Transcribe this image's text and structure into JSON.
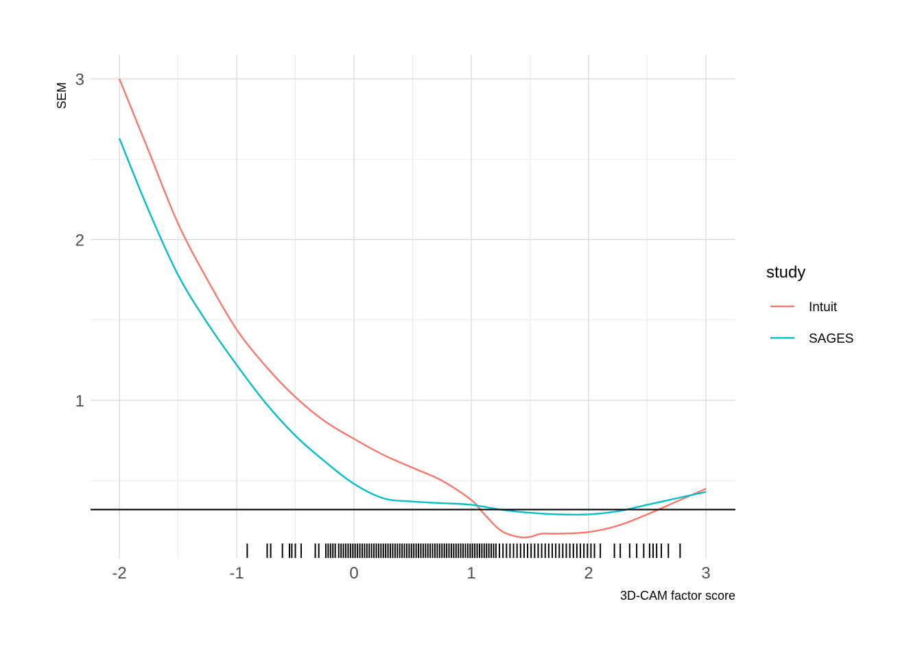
{
  "chart_data": {
    "type": "line",
    "xlabel": "3D-CAM factor score",
    "ylabel": "SEM",
    "xlim": [
      -2.25,
      3.25
    ],
    "ylim": [
      0.0,
      3.12
    ],
    "x_ticks": [
      -2,
      -1,
      0,
      1,
      2,
      3
    ],
    "x_tick_labels": [
      "-2",
      "-1",
      "0",
      "1",
      "2",
      "3"
    ],
    "y_ticks": [
      1,
      2,
      3
    ],
    "y_tick_labels": [
      "1",
      "2",
      "3"
    ],
    "y_minor_gridlines": [
      0.5,
      1.5,
      2.5
    ],
    "x_minor_gridlines": [
      -1.5,
      -0.5,
      0.5,
      1.5,
      2.5
    ],
    "grid": true,
    "legend": {
      "title": "study",
      "position": "right"
    },
    "reference_line": {
      "y": 0.32,
      "color": "#000000"
    },
    "series": [
      {
        "name": "Intuit",
        "color": "#F8766D",
        "x": [
          -2.0,
          -1.75,
          -1.5,
          -1.25,
          -1.0,
          -0.75,
          -0.5,
          -0.25,
          0.0,
          0.25,
          0.5,
          0.75,
          1.0,
          1.1,
          1.25,
          1.4,
          1.5,
          1.6,
          1.75,
          2.0,
          2.25,
          2.5,
          2.75,
          3.0
        ],
        "y": [
          3.0,
          2.55,
          2.1,
          1.75,
          1.44,
          1.21,
          1.02,
          0.87,
          0.76,
          0.66,
          0.58,
          0.5,
          0.38,
          0.3,
          0.19,
          0.15,
          0.15,
          0.17,
          0.17,
          0.18,
          0.22,
          0.29,
          0.37,
          0.45
        ]
      },
      {
        "name": "SAGES",
        "color": "#00BFC4",
        "x": [
          -2.0,
          -1.75,
          -1.5,
          -1.25,
          -1.0,
          -0.75,
          -0.5,
          -0.25,
          0.0,
          0.25,
          0.5,
          0.75,
          1.0,
          1.25,
          1.5,
          1.75,
          2.0,
          2.25,
          2.5,
          2.75,
          3.0
        ],
        "y": [
          2.63,
          2.18,
          1.78,
          1.48,
          1.22,
          0.98,
          0.78,
          0.62,
          0.48,
          0.39,
          0.37,
          0.36,
          0.35,
          0.32,
          0.3,
          0.29,
          0.29,
          0.31,
          0.35,
          0.39,
          0.43
        ]
      }
    ],
    "rug_x": [
      -0.91,
      -0.74,
      -0.71,
      -0.61,
      -0.55,
      -0.53,
      -0.5,
      -0.45,
      -0.33,
      -0.3,
      -0.24,
      -0.22,
      -0.2,
      -0.18,
      -0.16,
      -0.13,
      -0.11,
      -0.09,
      -0.07,
      -0.05,
      -0.03,
      -0.01,
      0.01,
      0.03,
      0.05,
      0.07,
      0.09,
      0.11,
      0.13,
      0.15,
      0.17,
      0.19,
      0.21,
      0.23,
      0.25,
      0.27,
      0.29,
      0.31,
      0.33,
      0.35,
      0.37,
      0.39,
      0.41,
      0.43,
      0.45,
      0.47,
      0.49,
      0.51,
      0.53,
      0.55,
      0.57,
      0.59,
      0.61,
      0.63,
      0.65,
      0.67,
      0.69,
      0.71,
      0.73,
      0.75,
      0.77,
      0.79,
      0.81,
      0.83,
      0.85,
      0.87,
      0.89,
      0.91,
      0.93,
      0.95,
      0.97,
      0.99,
      1.01,
      1.03,
      1.05,
      1.07,
      1.09,
      1.11,
      1.13,
      1.15,
      1.17,
      1.19,
      1.21,
      1.24,
      1.27,
      1.3,
      1.33,
      1.36,
      1.39,
      1.42,
      1.45,
      1.48,
      1.51,
      1.54,
      1.57,
      1.6,
      1.63,
      1.66,
      1.69,
      1.72,
      1.75,
      1.78,
      1.81,
      1.84,
      1.87,
      1.9,
      1.93,
      1.96,
      1.99,
      2.02,
      2.05,
      2.1,
      2.22,
      2.27,
      2.35,
      2.41,
      2.47,
      2.52,
      2.55,
      2.58,
      2.62,
      2.68,
      2.78
    ]
  }
}
